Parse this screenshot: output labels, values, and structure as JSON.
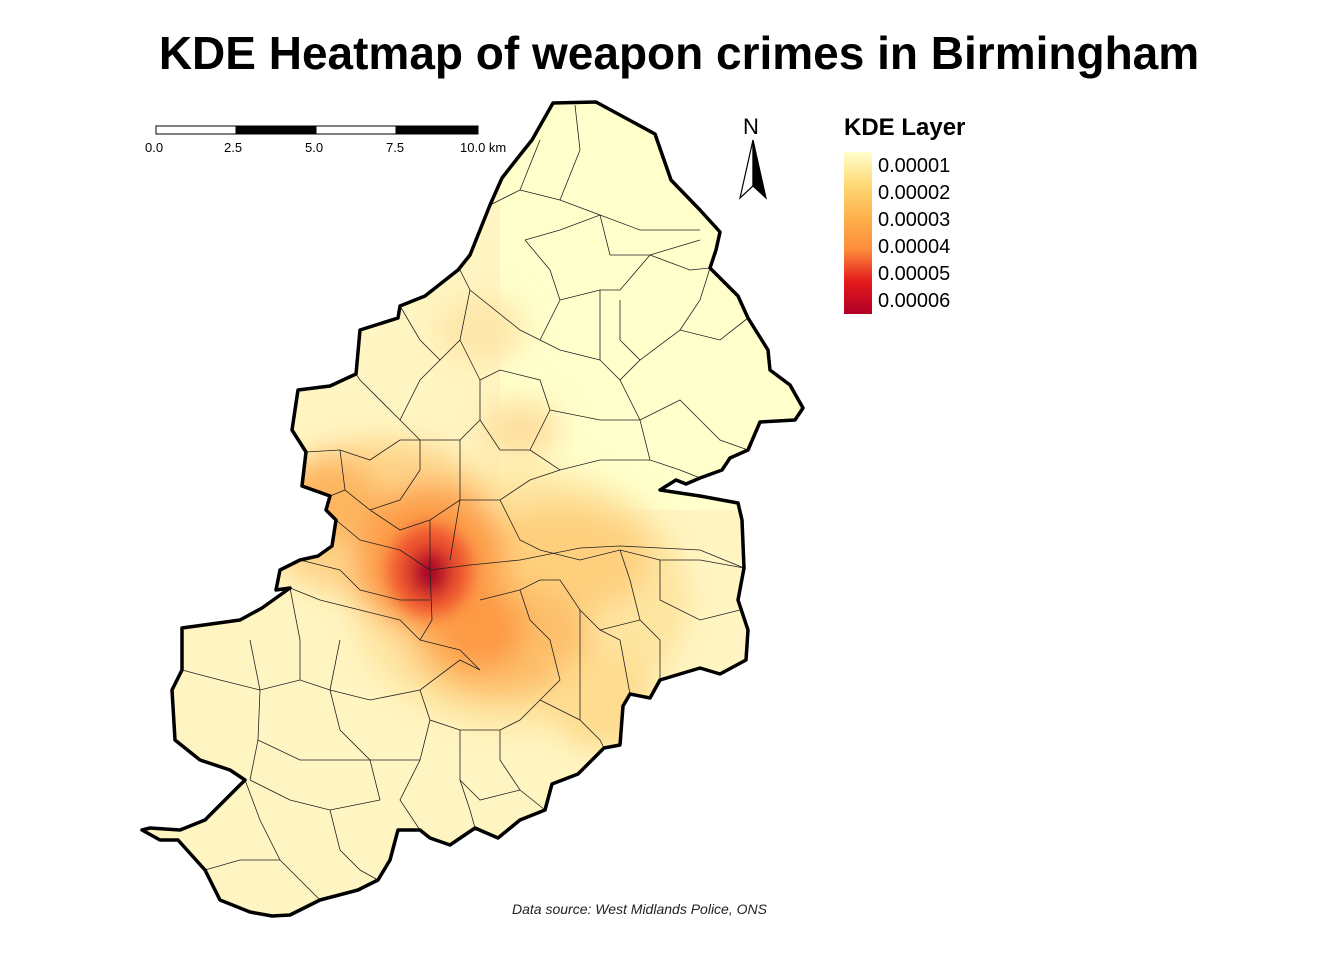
{
  "title": "KDE Heatmap of weapon crimes in Birmingham",
  "legend": {
    "title": "KDE Layer",
    "labels": [
      "0.00001",
      "0.00002",
      "0.00003",
      "0.00004",
      "0.00005",
      "0.00006"
    ],
    "colors": [
      "#ffffcc",
      "#fed976",
      "#feb24c",
      "#fd8d3c",
      "#e31a1c",
      "#b10026"
    ]
  },
  "scale_bar": {
    "labels": [
      "0.0",
      "2.5",
      "5.0",
      "7.5",
      "10.0 km"
    ]
  },
  "north_arrow": {
    "label": "N"
  },
  "caption": "Data source: West Midlands Police, ONS"
}
